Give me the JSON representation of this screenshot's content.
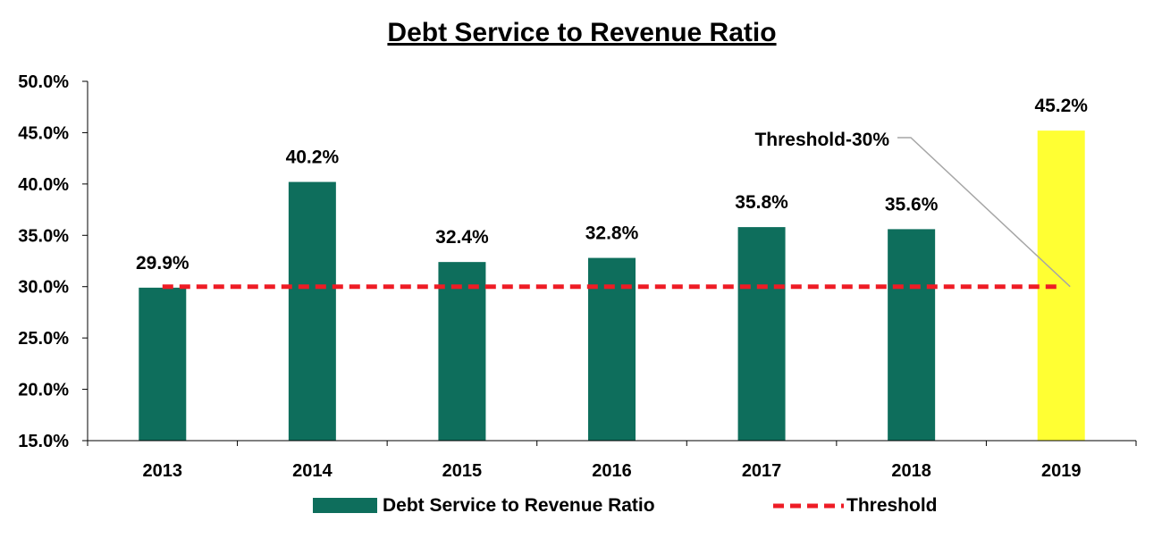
{
  "chart_data": {
    "type": "bar",
    "title": "Debt Service to Revenue Ratio",
    "categories": [
      "2013",
      "2014",
      "2015",
      "2016",
      "2017",
      "2018",
      "2019"
    ],
    "series": [
      {
        "name": "Debt Service to Revenue Ratio",
        "values": [
          29.9,
          40.2,
          32.4,
          32.8,
          35.8,
          35.6,
          45.2
        ],
        "data_labels": [
          "29.9%",
          "40.2%",
          "32.4%",
          "32.8%",
          "35.8%",
          "35.6%",
          "45.2%"
        ],
        "color": "#0e6e5c",
        "highlight": {
          "category": "2019",
          "color": "#ffff33"
        }
      },
      {
        "name": "Threshold",
        "type": "line",
        "style": "dashed",
        "values": [
          30,
          30,
          30,
          30,
          30,
          30,
          30
        ],
        "color": "#ee1c25"
      }
    ],
    "ylim": [
      15,
      50
    ],
    "yticks": [
      15,
      20,
      25,
      30,
      35,
      40,
      45,
      50
    ],
    "ytick_labels": [
      "15.0%",
      "20.0%",
      "25.0%",
      "30.0%",
      "35.0%",
      "40.0%",
      "45.0%",
      "50.0%"
    ],
    "annotation": {
      "text": "Threshold-30%",
      "points_to": {
        "category": "2019",
        "value": 30
      }
    },
    "annotation_color": "#a6a6a6",
    "grid": false,
    "legend_position": "bottom"
  }
}
